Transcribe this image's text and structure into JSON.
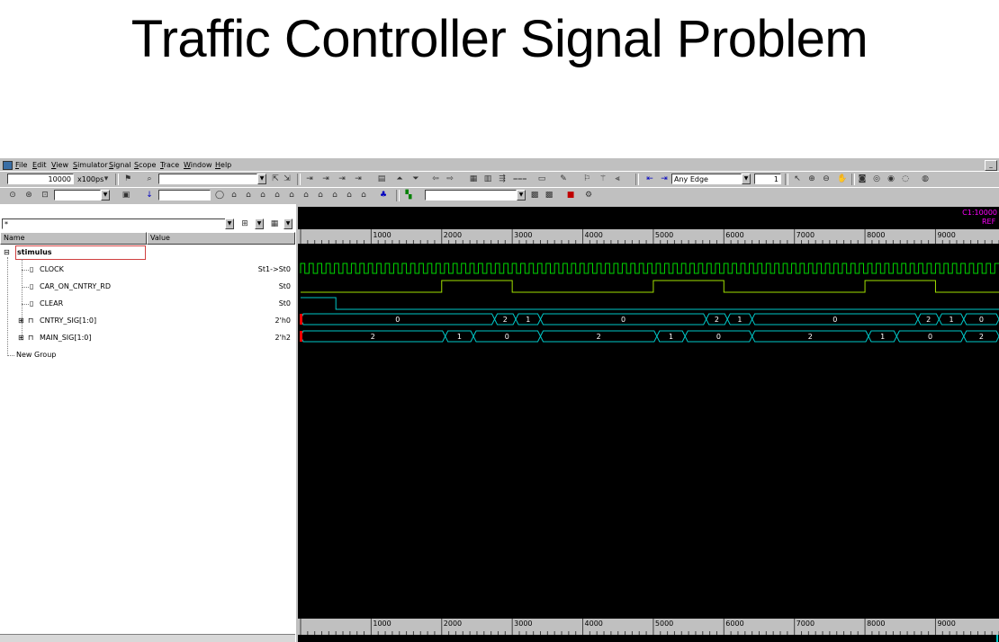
{
  "slide": {
    "title": "Traffic Controller Signal Problem"
  },
  "menu": {
    "items": [
      "File",
      "Edit",
      "View",
      "Simulator",
      "Signal",
      "Scope",
      "Trace",
      "Window",
      "Help"
    ]
  },
  "toolbar": {
    "time_value": "10000",
    "time_unit": "x100ps",
    "edge_select": "Any Edge",
    "count_value": "1",
    "filter_text": "*"
  },
  "signals": {
    "col_name": "Name",
    "col_value": "Value",
    "group": "stimulus",
    "new_group": "New Group",
    "rows": [
      {
        "name": "CLOCK",
        "value": "St1->St0",
        "kind": "bit"
      },
      {
        "name": "CAR_ON_CNTRY_RD",
        "value": "St0",
        "kind": "bit"
      },
      {
        "name": "CLEAR",
        "value": "St0",
        "kind": "bit"
      },
      {
        "name": "CNTRY_SIG[1:0]",
        "value": "2'h0",
        "kind": "bus"
      },
      {
        "name": "MAIN_SIG[1:0]",
        "value": "2'h2",
        "kind": "bus"
      }
    ]
  },
  "waveform": {
    "cursor_label": "C1:10000",
    "ref_label": "REF",
    "time_start": 0,
    "time_end": 9900,
    "major_ticks": [
      1000,
      2000,
      3000,
      4000,
      5000,
      6000,
      7000,
      8000,
      9000
    ],
    "clock_period": 120,
    "car_on_cntry_rd": {
      "initial": 0,
      "edges": [
        [
          2000,
          1
        ],
        [
          3000,
          0
        ],
        [
          5000,
          1
        ],
        [
          6000,
          0
        ],
        [
          8000,
          1
        ],
        [
          9000,
          0
        ]
      ]
    },
    "clear": {
      "initial": 1,
      "edges": [
        [
          500,
          0
        ]
      ]
    },
    "cntry_sig": [
      [
        0,
        2750,
        "0"
      ],
      [
        2750,
        3050,
        "2"
      ],
      [
        3050,
        3400,
        "1"
      ],
      [
        3400,
        5750,
        "0"
      ],
      [
        5750,
        6050,
        "2"
      ],
      [
        6050,
        6400,
        "1"
      ],
      [
        6400,
        8750,
        "0"
      ],
      [
        8750,
        9050,
        "2"
      ],
      [
        9050,
        9400,
        "1"
      ],
      [
        9400,
        9900,
        "0"
      ]
    ],
    "main_sig": [
      [
        0,
        2050,
        "2"
      ],
      [
        2050,
        2450,
        "1"
      ],
      [
        2450,
        3400,
        "0"
      ],
      [
        3400,
        5050,
        "2"
      ],
      [
        5050,
        5450,
        "1"
      ],
      [
        5450,
        6400,
        "0"
      ],
      [
        6400,
        8050,
        "2"
      ],
      [
        8050,
        8450,
        "1"
      ],
      [
        8450,
        9400,
        "0"
      ],
      [
        9400,
        9900,
        "2"
      ]
    ],
    "colors": {
      "background": "#000000",
      "trace": "#00c8c8",
      "clock": "#00d800",
      "car": "#a0e000",
      "text": "#ffffff",
      "grid": "#888888",
      "cursor_label": "#ff00ff",
      "start_marker": "#ff0000"
    }
  }
}
